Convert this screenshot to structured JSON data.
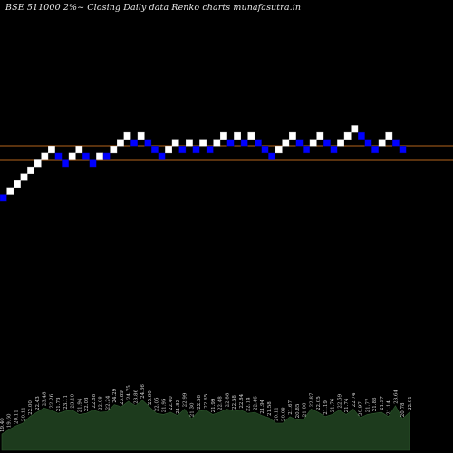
{
  "chart_data": {
    "type": "renko",
    "title": "BSE 511000  2%~  Closing Daily data  Renko  charts munafasutra.in",
    "colors": {
      "background": "#000000",
      "up_brick": "#ffffff",
      "down_brick": "#0000ff",
      "reference_lines": "#b5651d",
      "volume_area": "#1d3b1d"
    },
    "bricks": [
      {
        "dir": "down",
        "level": 0
      },
      {
        "dir": "up",
        "level": 1
      },
      {
        "dir": "up",
        "level": 2
      },
      {
        "dir": "up",
        "level": 3
      },
      {
        "dir": "up",
        "level": 4
      },
      {
        "dir": "up",
        "level": 5
      },
      {
        "dir": "up",
        "level": 6
      },
      {
        "dir": "up",
        "level": 7
      },
      {
        "dir": "down",
        "level": 6
      },
      {
        "dir": "down",
        "level": 5
      },
      {
        "dir": "up",
        "level": 6
      },
      {
        "dir": "up",
        "level": 7
      },
      {
        "dir": "down",
        "level": 6
      },
      {
        "dir": "down",
        "level": 5
      },
      {
        "dir": "up",
        "level": 6
      },
      {
        "dir": "down",
        "level": 6
      },
      {
        "dir": "up",
        "level": 7
      },
      {
        "dir": "up",
        "level": 8
      },
      {
        "dir": "up",
        "level": 9
      },
      {
        "dir": "down",
        "level": 8
      },
      {
        "dir": "up",
        "level": 9
      },
      {
        "dir": "down",
        "level": 8
      },
      {
        "dir": "down",
        "level": 7
      },
      {
        "dir": "down",
        "level": 6
      },
      {
        "dir": "up",
        "level": 7
      },
      {
        "dir": "up",
        "level": 8
      },
      {
        "dir": "down",
        "level": 7
      },
      {
        "dir": "up",
        "level": 8
      },
      {
        "dir": "down",
        "level": 7
      },
      {
        "dir": "up",
        "level": 8
      },
      {
        "dir": "down",
        "level": 7
      },
      {
        "dir": "up",
        "level": 8
      },
      {
        "dir": "up",
        "level": 9
      },
      {
        "dir": "down",
        "level": 8
      },
      {
        "dir": "up",
        "level": 9
      },
      {
        "dir": "down",
        "level": 8
      },
      {
        "dir": "up",
        "level": 9
      },
      {
        "dir": "down",
        "level": 8
      },
      {
        "dir": "down",
        "level": 7
      },
      {
        "dir": "down",
        "level": 6
      },
      {
        "dir": "up",
        "level": 7
      },
      {
        "dir": "up",
        "level": 8
      },
      {
        "dir": "up",
        "level": 9
      },
      {
        "dir": "down",
        "level": 8
      },
      {
        "dir": "down",
        "level": 7
      },
      {
        "dir": "up",
        "level": 8
      },
      {
        "dir": "up",
        "level": 9
      },
      {
        "dir": "down",
        "level": 8
      },
      {
        "dir": "down",
        "level": 7
      },
      {
        "dir": "up",
        "level": 8
      },
      {
        "dir": "up",
        "level": 9
      },
      {
        "dir": "up",
        "level": 10
      },
      {
        "dir": "down",
        "level": 9
      },
      {
        "dir": "down",
        "level": 8
      },
      {
        "dir": "down",
        "level": 7
      },
      {
        "dir": "up",
        "level": 8
      },
      {
        "dir": "up",
        "level": 9
      },
      {
        "dir": "down",
        "level": 8
      },
      {
        "dir": "down",
        "level": 7
      }
    ],
    "volume_labels": [
      "19.40",
      "19.60",
      "20.11",
      "20.11",
      "22.00",
      "22.43",
      "23.48",
      "22.26",
      "21.73",
      "23.11",
      "23.10",
      "21.94",
      "22.03",
      "22.88",
      "22.08",
      "22.24",
      "24.29",
      "23.89",
      "24.75",
      "23.86",
      "24.66",
      "23.60",
      "22.05",
      "21.95",
      "22.40",
      "21.83",
      "22.99",
      "21.30",
      "22.58",
      "22.65",
      "21.99",
      "22.48",
      "22.88",
      "22.58",
      "22.84",
      "22.14",
      "22.46",
      "21.94",
      "21.58",
      "20.11",
      "20.08",
      "21.67",
      "20.85",
      "21.00",
      "22.87",
      "22.05",
      "21.19",
      "21.76",
      "22.59",
      "21.74",
      "22.74",
      "20.97",
      "21.77",
      "21.86",
      "21.97",
      "21.14",
      "23.64",
      "20.78",
      "22.01"
    ],
    "volume_heights": [
      0.3,
      0.38,
      0.45,
      0.5,
      0.62,
      0.7,
      0.78,
      0.74,
      0.68,
      0.72,
      0.74,
      0.66,
      0.68,
      0.74,
      0.7,
      0.71,
      0.84,
      0.8,
      0.9,
      0.82,
      0.92,
      0.8,
      0.68,
      0.66,
      0.7,
      0.64,
      0.76,
      0.58,
      0.72,
      0.74,
      0.66,
      0.7,
      0.76,
      0.72,
      0.74,
      0.68,
      0.7,
      0.64,
      0.6,
      0.5,
      0.5,
      0.62,
      0.56,
      0.58,
      0.76,
      0.7,
      0.62,
      0.66,
      0.74,
      0.66,
      0.76,
      0.6,
      0.66,
      0.68,
      0.7,
      0.62,
      0.82,
      0.58,
      0.7
    ]
  }
}
